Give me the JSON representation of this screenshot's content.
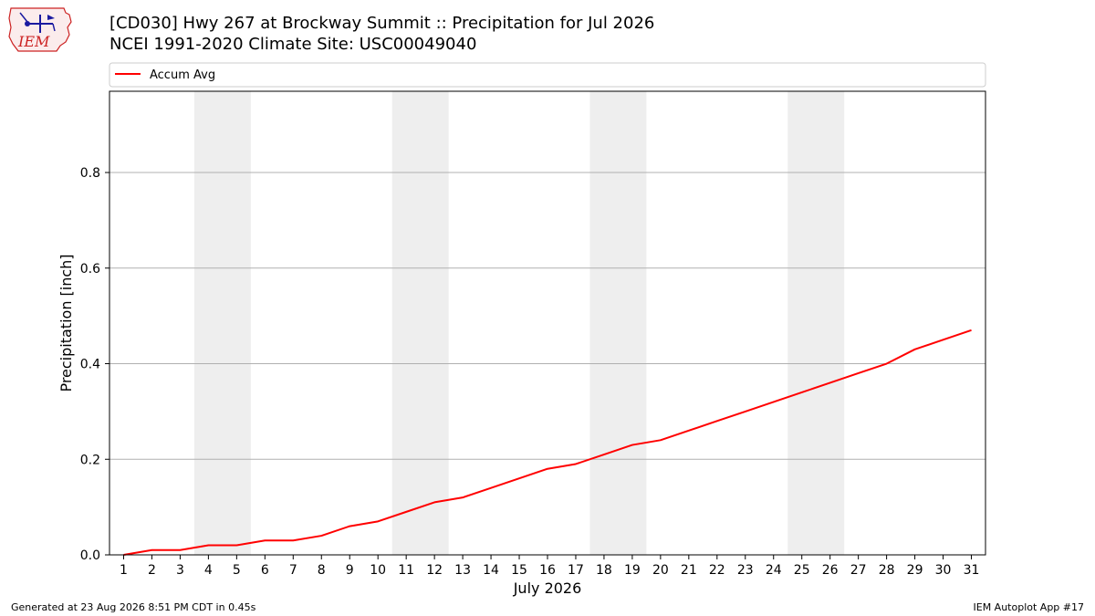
{
  "header": {
    "title_line1": "[CD030] Hwy 267 at Brockway Summit :: Precipitation for Jul 2026",
    "title_line2": "NCEI 1991-2020 Climate Site: USC00049040",
    "logo_text": "IEM"
  },
  "footer": {
    "generated": "Generated at 23 Aug 2026 8:51 PM CDT in 0.45s",
    "app": "IEM Autoplot App #17"
  },
  "colors": {
    "accum_line": "#ff0000",
    "weekend_band": "#eeeeee",
    "grid": "#b0b0b0",
    "logo_red": "#cc2222",
    "logo_blue": "#1a1aa0"
  },
  "chart_data": {
    "type": "line",
    "xlabel": "July 2026",
    "ylabel": "Precipitation [inch]",
    "xlim": [
      0.5,
      31.5
    ],
    "ylim": [
      0,
      0.97
    ],
    "yticks": [
      0.0,
      0.2,
      0.4,
      0.6,
      0.8
    ],
    "ytick_labels": [
      "0.0",
      "0.2",
      "0.4",
      "0.6",
      "0.8"
    ],
    "categories": [
      "1",
      "2",
      "3",
      "4",
      "5",
      "6",
      "7",
      "8",
      "9",
      "10",
      "11",
      "12",
      "13",
      "14",
      "15",
      "16",
      "17",
      "18",
      "19",
      "20",
      "21",
      "22",
      "23",
      "24",
      "25",
      "26",
      "27",
      "28",
      "29",
      "30",
      "31"
    ],
    "weekend_bands": [
      [
        4,
        5
      ],
      [
        11,
        12
      ],
      [
        18,
        19
      ],
      [
        25,
        26
      ]
    ],
    "grid": "horizontal",
    "legend_position": "top",
    "series": [
      {
        "name": "Accum Avg",
        "color": "#ff0000",
        "x": [
          1,
          2,
          3,
          4,
          5,
          6,
          7,
          8,
          9,
          10,
          11,
          12,
          13,
          14,
          15,
          16,
          17,
          18,
          19,
          20,
          21,
          22,
          23,
          24,
          25,
          26,
          27,
          28,
          29,
          30,
          31
        ],
        "values": [
          0.0,
          0.01,
          0.01,
          0.02,
          0.02,
          0.03,
          0.03,
          0.04,
          0.06,
          0.07,
          0.09,
          0.11,
          0.12,
          0.14,
          0.16,
          0.18,
          0.19,
          0.21,
          0.23,
          0.24,
          0.26,
          0.28,
          0.3,
          0.32,
          0.34,
          0.36,
          0.38,
          0.4,
          0.43,
          0.45,
          0.47
        ]
      }
    ]
  }
}
